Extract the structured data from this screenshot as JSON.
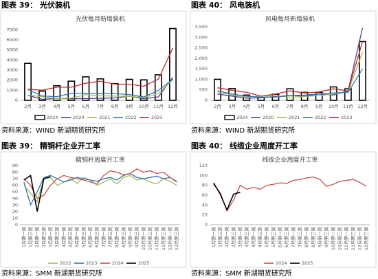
{
  "chart_data": [
    {
      "type": "combo",
      "heading": "图表 39：  光伏装机",
      "title": "光伏每月新增装机",
      "source": "资料来源：WIND  新湖期货研究所",
      "categories": [
        "2月",
        "3月",
        "4月",
        "5月",
        "6月",
        "7月",
        "8月",
        "9月",
        "10月",
        "11月",
        "12月"
      ],
      "ylim": [
        0,
        7500
      ],
      "yticks": [
        0,
        1000,
        2000,
        3000,
        4000,
        5000,
        6000,
        7000
      ],
      "grid": false,
      "legend": "bottom",
      "series": [
        {
          "name": "2024",
          "style": "bar",
          "color": "#000000",
          "values": [
            3670,
            920,
            1450,
            1900,
            2330,
            2130,
            1660,
            2080,
            2030,
            2530,
            7120
          ]
        },
        {
          "name": "2020",
          "style": "line",
          "color": "#5b3a8e",
          "values": [
            500,
            100,
            190,
            160,
            180,
            200,
            230,
            410,
            160,
            340,
            2270
          ]
        },
        {
          "name": "2021",
          "style": "line",
          "color": "#9bbb59",
          "values": [
            520,
            346,
            162,
            223,
            558,
            447,
            420,
            389,
            284,
            666,
            2060
          ]
        },
        {
          "name": "2022",
          "style": "line",
          "color": "#2e75b6",
          "values": [
            1086,
            432,
            367,
            685,
            711,
            676,
            673,
            573,
            342,
            972,
            2103
          ]
        },
        {
          "name": "2023",
          "style": "line",
          "color": "#c0282d",
          "values": [
            1100,
            1000,
            1300,
            1300,
            1700,
            1900,
            1600,
            1600,
            1400,
            2100,
            5200
          ]
        }
      ]
    },
    {
      "type": "combo",
      "heading": "图表 40：  风电装机",
      "title": "风电每月新增装机",
      "source": "资料来源：WIND  新湖期货研究所",
      "categories": [
        "2月",
        "3月",
        "4月",
        "5月",
        "6月",
        "7月",
        "8月",
        "9月",
        "10月",
        "11月",
        "12月"
      ],
      "ylim": [
        0,
        3600
      ],
      "yticks": [
        0,
        500,
        {
          "value": 1000,
          "label": "1,000"
        },
        {
          "value": 1500,
          "label": "1,500"
        },
        {
          "value": 2000,
          "label": "2,000"
        },
        {
          "value": 2500,
          "label": "2,500"
        },
        {
          "value": 3000,
          "label": "3,000"
        },
        {
          "value": 3500,
          "label": "3,500"
        }
      ],
      "grid": false,
      "legend": "bottom",
      "series": [
        {
          "name": "2024",
          "style": "bar",
          "color": "#000000",
          "values": [
            1000,
            560,
            250,
            130,
            290,
            550,
            380,
            380,
            640,
            550,
            2800
          ]
        },
        {
          "name": "2020",
          "style": "line",
          "color": "#5b3a8e",
          "values": [
            300,
            200,
            100,
            120,
            180,
            230,
            200,
            300,
            250,
            450,
            3450
          ]
        },
        {
          "name": "2021",
          "style": "line",
          "color": "#9bbb59",
          "values": [
            400,
            250,
            150,
            200,
            220,
            150,
            180,
            230,
            300,
            400,
            2300
          ]
        },
        {
          "name": "2022",
          "style": "line",
          "color": "#2e75b6",
          "values": [
            450,
            300,
            200,
            150,
            150,
            230,
            250,
            300,
            350,
            380,
            1500
          ]
        },
        {
          "name": "2023",
          "style": "line",
          "color": "#c0282d",
          "values": [
            600,
            480,
            380,
            200,
            300,
            450,
            350,
            400,
            550,
            450,
            2800
          ]
        }
      ]
    },
    {
      "type": "line",
      "heading": "图表 39：  精铜杆企业开工率",
      "title": "精铜杆周度开工率",
      "source": "资料来源：SMM  新湖期货研究所",
      "categories": [
        "1月第一周",
        "1月第三周",
        "2月第一周",
        "2月第三周",
        "3月第一周",
        "3月第三周",
        "4月第一周",
        "4月第三周",
        "5月第一周",
        "5月第三周",
        "6月第一周",
        "6月第三周",
        "7月第一周",
        "7月第三周",
        "8月第一周",
        "8月第三周",
        "9月第一周",
        "9月第三周",
        "10月第一周",
        "10月第三周",
        "11月第一周",
        "11月第三周",
        "12月第一周",
        "12月第三周"
      ],
      "ylim": [
        0,
        90
      ],
      "yticks": [
        0,
        10,
        20,
        30,
        40,
        50,
        60,
        70,
        80,
        90
      ],
      "grid": false,
      "legend": "bottom",
      "series": [
        {
          "name": "2022",
          "color": "#9bbb59",
          "values": [
            60,
            48,
            35,
            70,
            72,
            60,
            65,
            70,
            63,
            72,
            68,
            60,
            65,
            70,
            62,
            72,
            75,
            68,
            70,
            65,
            62,
            70,
            66,
            60
          ]
        },
        {
          "name": "2023",
          "color": "#2e75b6",
          "values": [
            65,
            30,
            50,
            72,
            75,
            70,
            65,
            68,
            72,
            70,
            68,
            66,
            70,
            72,
            68,
            75,
            78,
            72,
            70,
            72,
            74,
            70,
            72,
            65
          ]
        },
        {
          "name": "2024",
          "color": "#c0504d",
          "values": [
            70,
            60,
            40,
            45,
            60,
            70,
            75,
            72,
            70,
            68,
            65,
            62,
            75,
            82,
            80,
            76,
            78,
            85,
            80,
            82,
            78,
            80,
            72,
            66
          ]
        },
        {
          "name": "2025",
          "color": "#000000",
          "values": [
            68,
            75,
            20,
            70,
            73,
            null,
            null,
            null,
            null,
            null,
            null,
            null,
            null,
            null,
            null,
            null,
            null,
            null,
            null,
            null,
            null,
            null,
            null,
            null
          ]
        }
      ]
    },
    {
      "type": "line",
      "heading": "图表 40：  线缆企业周度开工率",
      "title": "线缆企业周度开工率",
      "source": "资料来源：SMM  新湖期货研究所",
      "categories": [
        "1月第一周",
        "1月第三周",
        "2月第一周",
        "2月第三周",
        "3月第一周",
        "3月第三周",
        "4月第一周",
        "4月第三周",
        "5月第一周",
        "5月第三周",
        "6月第一周",
        "6月第三周",
        "7月第一周",
        "7月第三周",
        "8月第一周",
        "8月第三周",
        "9月第一周",
        "9月第三周",
        "10月第一周",
        "10月第三周",
        "11月第一周",
        "11月第三周",
        "12月第一周",
        "12月第三周"
      ],
      "ylim": [
        0,
        120
      ],
      "yticks": [
        0,
        20,
        40,
        60,
        80,
        100,
        120
      ],
      "grid": false,
      "legend": "bottom",
      "series": [
        {
          "name": "2024",
          "color": "#c0504d",
          "values": [
            82,
            65,
            28,
            50,
            80,
            72,
            76,
            72,
            80,
            82,
            85,
            84,
            90,
            92,
            95,
            97,
            92,
            78,
            82,
            88,
            90,
            92,
            86,
            78
          ]
        },
        {
          "name": "2025",
          "color": "#000000",
          "values": [
            85,
            62,
            30,
            62,
            66,
            null,
            null,
            null,
            null,
            null,
            null,
            null,
            null,
            null,
            null,
            null,
            null,
            null,
            null,
            null,
            null,
            null,
            null,
            null
          ]
        }
      ]
    }
  ]
}
